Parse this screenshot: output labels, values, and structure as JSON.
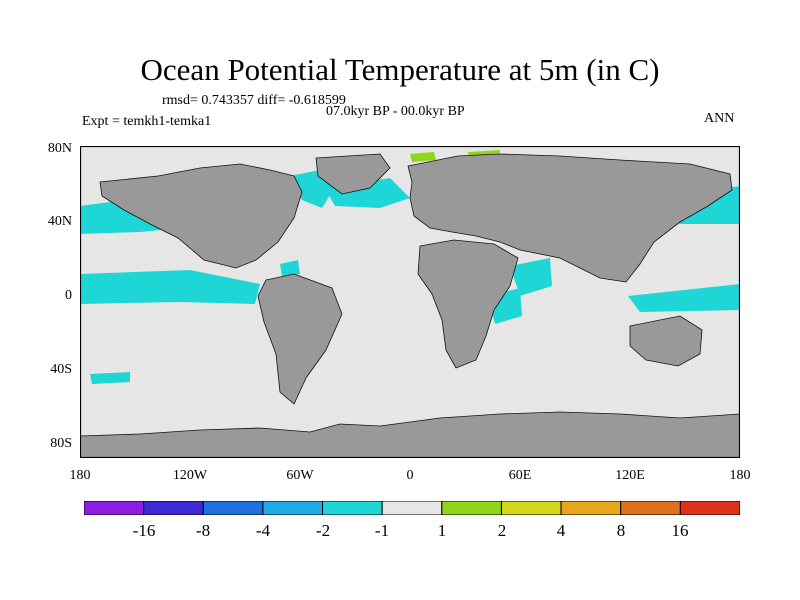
{
  "title": "Ocean Potential Temperature at 5m (in C)",
  "stats": "rmsd= 0.743357 diff= -0.618599",
  "period": "07.0kyr BP - 00.0kyr BP",
  "experiment": "Expt = temkh1-temka1",
  "season": "ANN",
  "lat_ticks": [
    "80N",
    "40N",
    "0",
    "40S",
    "80S"
  ],
  "lon_ticks": [
    "180",
    "120W",
    "60W",
    "0",
    "60E",
    "120E",
    "180"
  ],
  "colorbar": {
    "colors": [
      "#8a1fe0",
      "#3d2ad6",
      "#1f6fe0",
      "#1fa9e6",
      "#1fd6d6",
      "#e6e6e6",
      "#8fd61a",
      "#d6d61a",
      "#e6a81a",
      "#e0701a",
      "#e0321a"
    ],
    "labels": [
      "-16",
      "-8",
      "-4",
      "-2",
      "-1",
      "1",
      "2",
      "4",
      "8",
      "16"
    ]
  },
  "colors": {
    "ocean": "#e6e6e6",
    "land": "#999999",
    "cool": "#1fd6d6",
    "cool_strong": "#1fa9e6",
    "warm": "#8fd61a"
  }
}
